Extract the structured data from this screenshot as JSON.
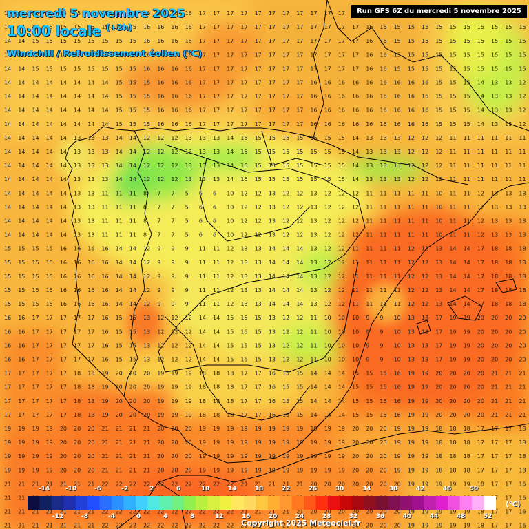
{
  "header": {
    "date_line": "mercredi 5 novembre 2025",
    "time_line": "10:00 locale",
    "time_offset": "(+3h)",
    "variable_line": "Windchill / Refroidissement éolien (°C)",
    "run_label": "Run GFS 6Z du mercredi 5 novembre 2025"
  },
  "legend": {
    "unit": "(°C)",
    "top_labels": [
      "-14",
      "-10",
      "-6",
      "-2",
      "2",
      "6",
      "10",
      "14",
      "18",
      "22",
      "26",
      "30",
      "34",
      "38",
      "42",
      "46",
      "50"
    ],
    "bottom_labels": [
      "-12",
      "-8",
      "-4",
      "0",
      "4",
      "8",
      "12",
      "16",
      "20",
      "24",
      "28",
      "32",
      "36",
      "40",
      "44",
      "48",
      "52"
    ],
    "colors": [
      "#0d0d3f",
      "#102060",
      "#1a2a8a",
      "#1f2fb0",
      "#2040d8",
      "#2050ff",
      "#2a70ff",
      "#2a90ff",
      "#30b0ff",
      "#40d0ff",
      "#50e8e0",
      "#60f0b0",
      "#70f080",
      "#90f050",
      "#b8f040",
      "#d8f040",
      "#f0f040",
      "#ffe860",
      "#ffd860",
      "#ffc840",
      "#ffb030",
      "#ff9830",
      "#ff7820",
      "#ff5818",
      "#ff3010",
      "#e81010",
      "#c80808",
      "#a80810",
      "#901020",
      "#781030",
      "#801050",
      "#901070",
      "#a01090",
      "#c020b0",
      "#e020d0",
      "#f050e0",
      "#ff80f0",
      "#ffb0f8",
      "#ffffff"
    ]
  },
  "copyright": "Copyright 2025 Meteociel.fr",
  "map_values": {
    "note_rows": [
      "14 15 15 15 15 15 16 16 16 17 17 17 17 17 17 17 17 16 15 15 15 15 15 15 15",
      "14 14 14 14 14 15 15 16 16 17 17 17 17 17 16 16 16 16 16 16 15 15 14 13 12",
      "14 14 14 13 13 14 12 12 13 13 14 15 15 15 15 15 14 13 13 12 12 11 11 11 11",
      "14 14 14 13 11 11 8 7 5 6 10 12 13 12 13 12 12 11 11 11 10 11 12 13 13",
      "15 15 16 16 16 14 12 9 9 11 12 13 14 14 13 12 11 11 11 12 13 14 17 18 18",
      "16 17 17 17 16 15 13 12 12 14 15 15 13 12 11 10 10 9 10 13 17 19 20 20 20",
      "17 17 17 18 19 20 20 19 19 18 18 17 16 15 14 14 15 15 16 19 20 20 20 21 21",
      "19 19 20 20 21 21 21 20 20 19 19 19 19 19 19 19 20 20 19 19 18 18 17 17 18",
      "21 21 21 21 22 22 22 22 22 22 22 21 21 21 20 20 20 20 20 19 19 19 18 17 16"
    ]
  }
}
